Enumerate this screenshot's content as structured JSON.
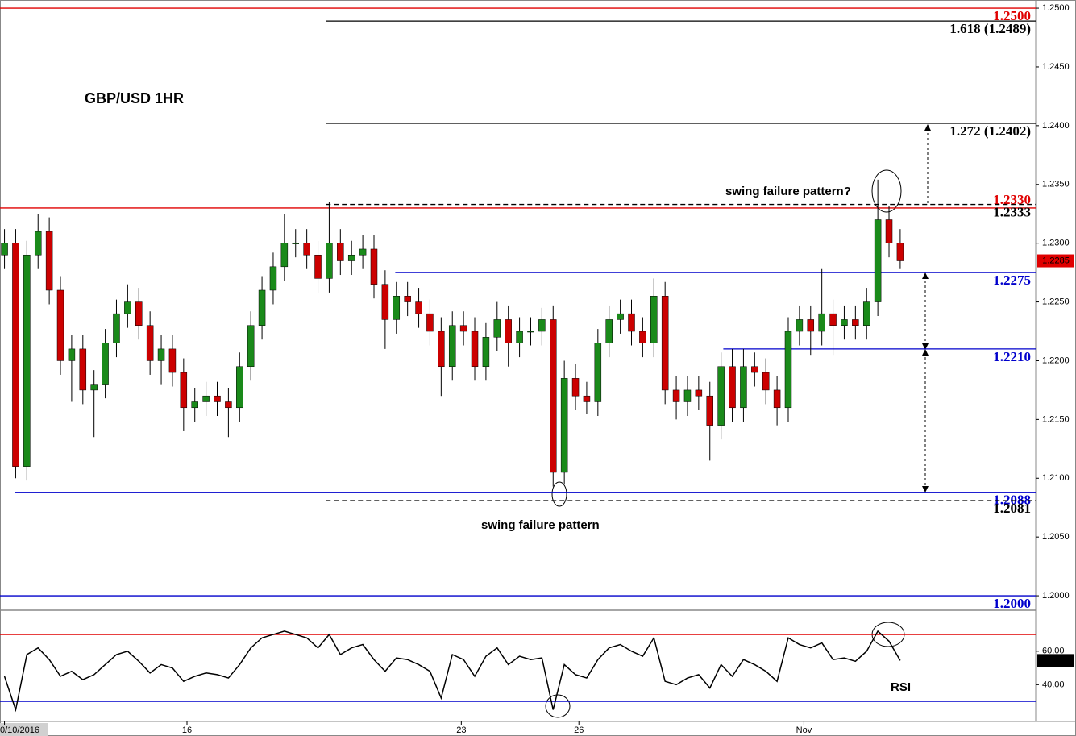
{
  "chart_data": [
    {
      "type": "candlestick",
      "title": "GBP/USD 1HR",
      "open": [
        1.229,
        1.23,
        1.211,
        1.229,
        1.231,
        1.226,
        1.22,
        1.221,
        1.2175,
        1.218,
        1.2215,
        1.224,
        1.225,
        1.223,
        1.22,
        1.221,
        1.219,
        1.216,
        1.2165,
        1.217,
        1.2165,
        1.216,
        1.2195,
        1.223,
        1.226,
        1.228,
        1.23,
        1.23,
        1.229,
        1.227,
        1.23,
        1.2285,
        1.229,
        1.2295,
        1.2265,
        1.2235,
        1.2255,
        1.225,
        1.224,
        1.2225,
        1.2195,
        1.223,
        1.2225,
        1.2195,
        1.222,
        1.2235,
        1.2215,
        1.2225,
        1.2225,
        1.2235,
        1.2105,
        1.2185,
        1.217,
        1.2165,
        1.2215,
        1.2235,
        1.224,
        1.2225,
        1.2215,
        1.2255,
        1.2175,
        1.2165,
        1.2175,
        1.217,
        1.2145,
        1.2195,
        1.216,
        1.2195,
        1.219,
        1.2175,
        1.216,
        1.2225,
        1.2235,
        1.2225,
        1.224,
        1.223,
        1.2235,
        1.223,
        1.225,
        1.232,
        1.23
      ],
      "high": [
        1.2312,
        1.2312,
        1.2302,
        1.2325,
        1.2322,
        1.2272,
        1.2222,
        1.2222,
        1.2192,
        1.2227,
        1.2252,
        1.2265,
        1.2262,
        1.2242,
        1.2222,
        1.2222,
        1.2202,
        1.2177,
        1.2182,
        1.2182,
        1.2177,
        1.2207,
        1.2242,
        1.2272,
        1.2292,
        1.2325,
        1.2312,
        1.2312,
        1.2302,
        1.2335,
        1.2312,
        1.2302,
        1.2307,
        1.2307,
        1.2277,
        1.2267,
        1.2267,
        1.2262,
        1.2252,
        1.2237,
        1.2242,
        1.2242,
        1.2237,
        1.2232,
        1.225,
        1.2247,
        1.2237,
        1.2237,
        1.2245,
        1.2247,
        1.22,
        1.2197,
        1.2182,
        1.2227,
        1.2247,
        1.2252,
        1.2252,
        1.2237,
        1.227,
        1.2267,
        1.2187,
        1.2187,
        1.2187,
        1.2182,
        1.2207,
        1.221,
        1.221,
        1.2207,
        1.2202,
        1.2187,
        1.2237,
        1.2247,
        1.2247,
        1.2278,
        1.2252,
        1.2247,
        1.2247,
        1.2262,
        1.2354,
        1.2332,
        1.2312
      ],
      "low": [
        1.2278,
        1.21,
        1.2098,
        1.2278,
        1.2248,
        1.2188,
        1.2165,
        1.2163,
        1.2135,
        1.2168,
        1.2203,
        1.2228,
        1.2218,
        1.2188,
        1.218,
        1.2178,
        1.214,
        1.2148,
        1.2153,
        1.2153,
        1.2135,
        1.2148,
        1.2183,
        1.2218,
        1.2248,
        1.2268,
        1.2288,
        1.2278,
        1.2258,
        1.2258,
        1.2273,
        1.2273,
        1.2278,
        1.2253,
        1.221,
        1.2223,
        1.2238,
        1.2228,
        1.2213,
        1.217,
        1.2183,
        1.2213,
        1.2183,
        1.2183,
        1.2208,
        1.2195,
        1.2203,
        1.2213,
        1.2213,
        1.2093,
        1.2095,
        1.2158,
        1.2155,
        1.2153,
        1.2203,
        1.2223,
        1.2213,
        1.2203,
        1.2203,
        1.2163,
        1.215,
        1.2153,
        1.2158,
        1.2115,
        1.2133,
        1.2148,
        1.2148,
        1.2178,
        1.2163,
        1.2145,
        1.2148,
        1.2213,
        1.2205,
        1.2213,
        1.2205,
        1.2218,
        1.2218,
        1.2218,
        1.2238,
        1.2288,
        1.2278
      ],
      "close": [
        1.23,
        1.211,
        1.229,
        1.231,
        1.226,
        1.22,
        1.221,
        1.2175,
        1.218,
        1.2215,
        1.224,
        1.225,
        1.223,
        1.22,
        1.221,
        1.219,
        1.216,
        1.2165,
        1.217,
        1.2165,
        1.216,
        1.2195,
        1.223,
        1.226,
        1.228,
        1.23,
        1.23,
        1.229,
        1.227,
        1.23,
        1.2285,
        1.229,
        1.2295,
        1.2265,
        1.2235,
        1.2255,
        1.225,
        1.224,
        1.2225,
        1.2195,
        1.223,
        1.2225,
        1.2195,
        1.222,
        1.2235,
        1.2215,
        1.2225,
        1.2225,
        1.2235,
        1.2105,
        1.2185,
        1.217,
        1.2165,
        1.2215,
        1.2235,
        1.224,
        1.2225,
        1.2215,
        1.2255,
        1.2175,
        1.2165,
        1.2175,
        1.217,
        1.2145,
        1.2195,
        1.216,
        1.2195,
        1.219,
        1.2175,
        1.216,
        1.2225,
        1.2235,
        1.2225,
        1.224,
        1.223,
        1.2235,
        1.223,
        1.225,
        1.232,
        1.23,
        1.2285
      ],
      "up_color": "#1a8a1a",
      "down_color": "#cc0000",
      "last_price_color": "#e00000",
      "ylim": [
        1.19877,
        1.25069
      ],
      "yticks": [
        {
          "value": 1.2,
          "label": "1.2000"
        },
        {
          "value": 1.205,
          "label": "1.2050"
        },
        {
          "value": 1.21,
          "label": "1.2100"
        },
        {
          "value": 1.215,
          "label": "1.2150"
        },
        {
          "value": 1.22,
          "label": "1.2200"
        },
        {
          "value": 1.225,
          "label": "1.2250"
        },
        {
          "value": 1.23,
          "label": "1.2300"
        },
        {
          "value": 1.235,
          "label": "1.2350"
        },
        {
          "value": 1.24,
          "label": "1.2400"
        },
        {
          "value": 1.245,
          "label": "1.2450"
        },
        {
          "value": 1.25,
          "label": "1.2500"
        }
      ],
      "xlim": [
        -0.4,
        92.1
      ],
      "xticks": [
        {
          "value": 0,
          "label": "0/10/2016"
        },
        {
          "value": 16.3,
          "label": "16"
        },
        {
          "value": 40.8,
          "label": "23"
        },
        {
          "value": 51.3,
          "label": "26"
        },
        {
          "value": 71.4,
          "label": "Nov"
        }
      ],
      "levels": [
        {
          "value": 1.25,
          "label": "1.2500",
          "color": "#e00000"
        },
        {
          "value": 1.2489,
          "label": "1.618 (1.2489)",
          "color": "#000000",
          "x_start": 28.7
        },
        {
          "value": 1.2402,
          "label": "1.272 (1.2402)",
          "color": "#000000",
          "x_start": 28.7
        },
        {
          "value": 1.233,
          "label": "1.2330",
          "color": "#e00000"
        },
        {
          "value": 1.2333,
          "label": "1.2333",
          "color": "#000000",
          "x_start": 28.7,
          "style": "dashed"
        },
        {
          "value": 1.2275,
          "label": "1.2275",
          "color": "#0000cc",
          "x_start": 34.9
        },
        {
          "value": 1.221,
          "label": "1.2210",
          "color": "#0000cc",
          "x_start": 64.2
        },
        {
          "value": 1.2088,
          "label": "1.2088",
          "color": "#0000cc",
          "x_start": 0.9
        },
        {
          "value": 1.2081,
          "label": "1.2081",
          "color": "#000000",
          "x_start": 28.7,
          "style": "dashed"
        },
        {
          "value": 1.2,
          "label": "1.2000",
          "color": "#0000cc"
        }
      ],
      "annotations": [
        "swing failure pattern?",
        "swing failure pattern"
      ]
    },
    {
      "type": "line",
      "series": [
        {
          "name": "RSI",
          "color": "#000000",
          "values": [
            45,
            25,
            58,
            62,
            55,
            45,
            48,
            43,
            46,
            52,
            58,
            60,
            54,
            47,
            52,
            50,
            42,
            45,
            47,
            46,
            44,
            52,
            62,
            68,
            70,
            72,
            70,
            68,
            62,
            70,
            58,
            62,
            64,
            55,
            48,
            56,
            55,
            52,
            48,
            32,
            58,
            55,
            45,
            57,
            62,
            52,
            57,
            55,
            56,
            25,
            52,
            46,
            44,
            55,
            62,
            64,
            60,
            57,
            68,
            42,
            40,
            44,
            46,
            38,
            52,
            45,
            55,
            52,
            48,
            42,
            68,
            64,
            62,
            65,
            55,
            56,
            54,
            60,
            72,
            66,
            54.44
          ]
        }
      ],
      "ylim": [
        18,
        84.5
      ],
      "yticks": [
        {
          "value": 40,
          "label": "40.00"
        },
        {
          "value": 60,
          "label": "60.00"
        }
      ],
      "levels": [
        {
          "value": 70,
          "color": "#e00000"
        },
        {
          "value": 30,
          "color": "#0000cc"
        }
      ]
    }
  ]
}
